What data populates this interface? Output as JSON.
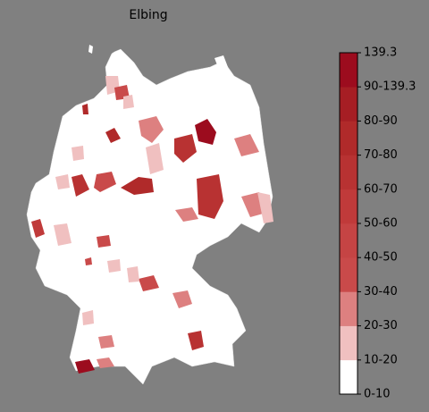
{
  "title": "Elbing",
  "legend": {
    "labels": [
      "0-10",
      "10-20",
      "20-30",
      "30-40",
      "40-50",
      "50-60",
      "60-70",
      "70-80",
      "80-90",
      "90-139.3",
      "139.3"
    ],
    "colors": [
      "#ffffff",
      "#f0c0c0",
      "#dd8080",
      "#c94a4a",
      "#c54444",
      "#c03a3a",
      "#b83232",
      "#b02a2a",
      "#a61e24",
      "#9c0c1e"
    ]
  }
}
